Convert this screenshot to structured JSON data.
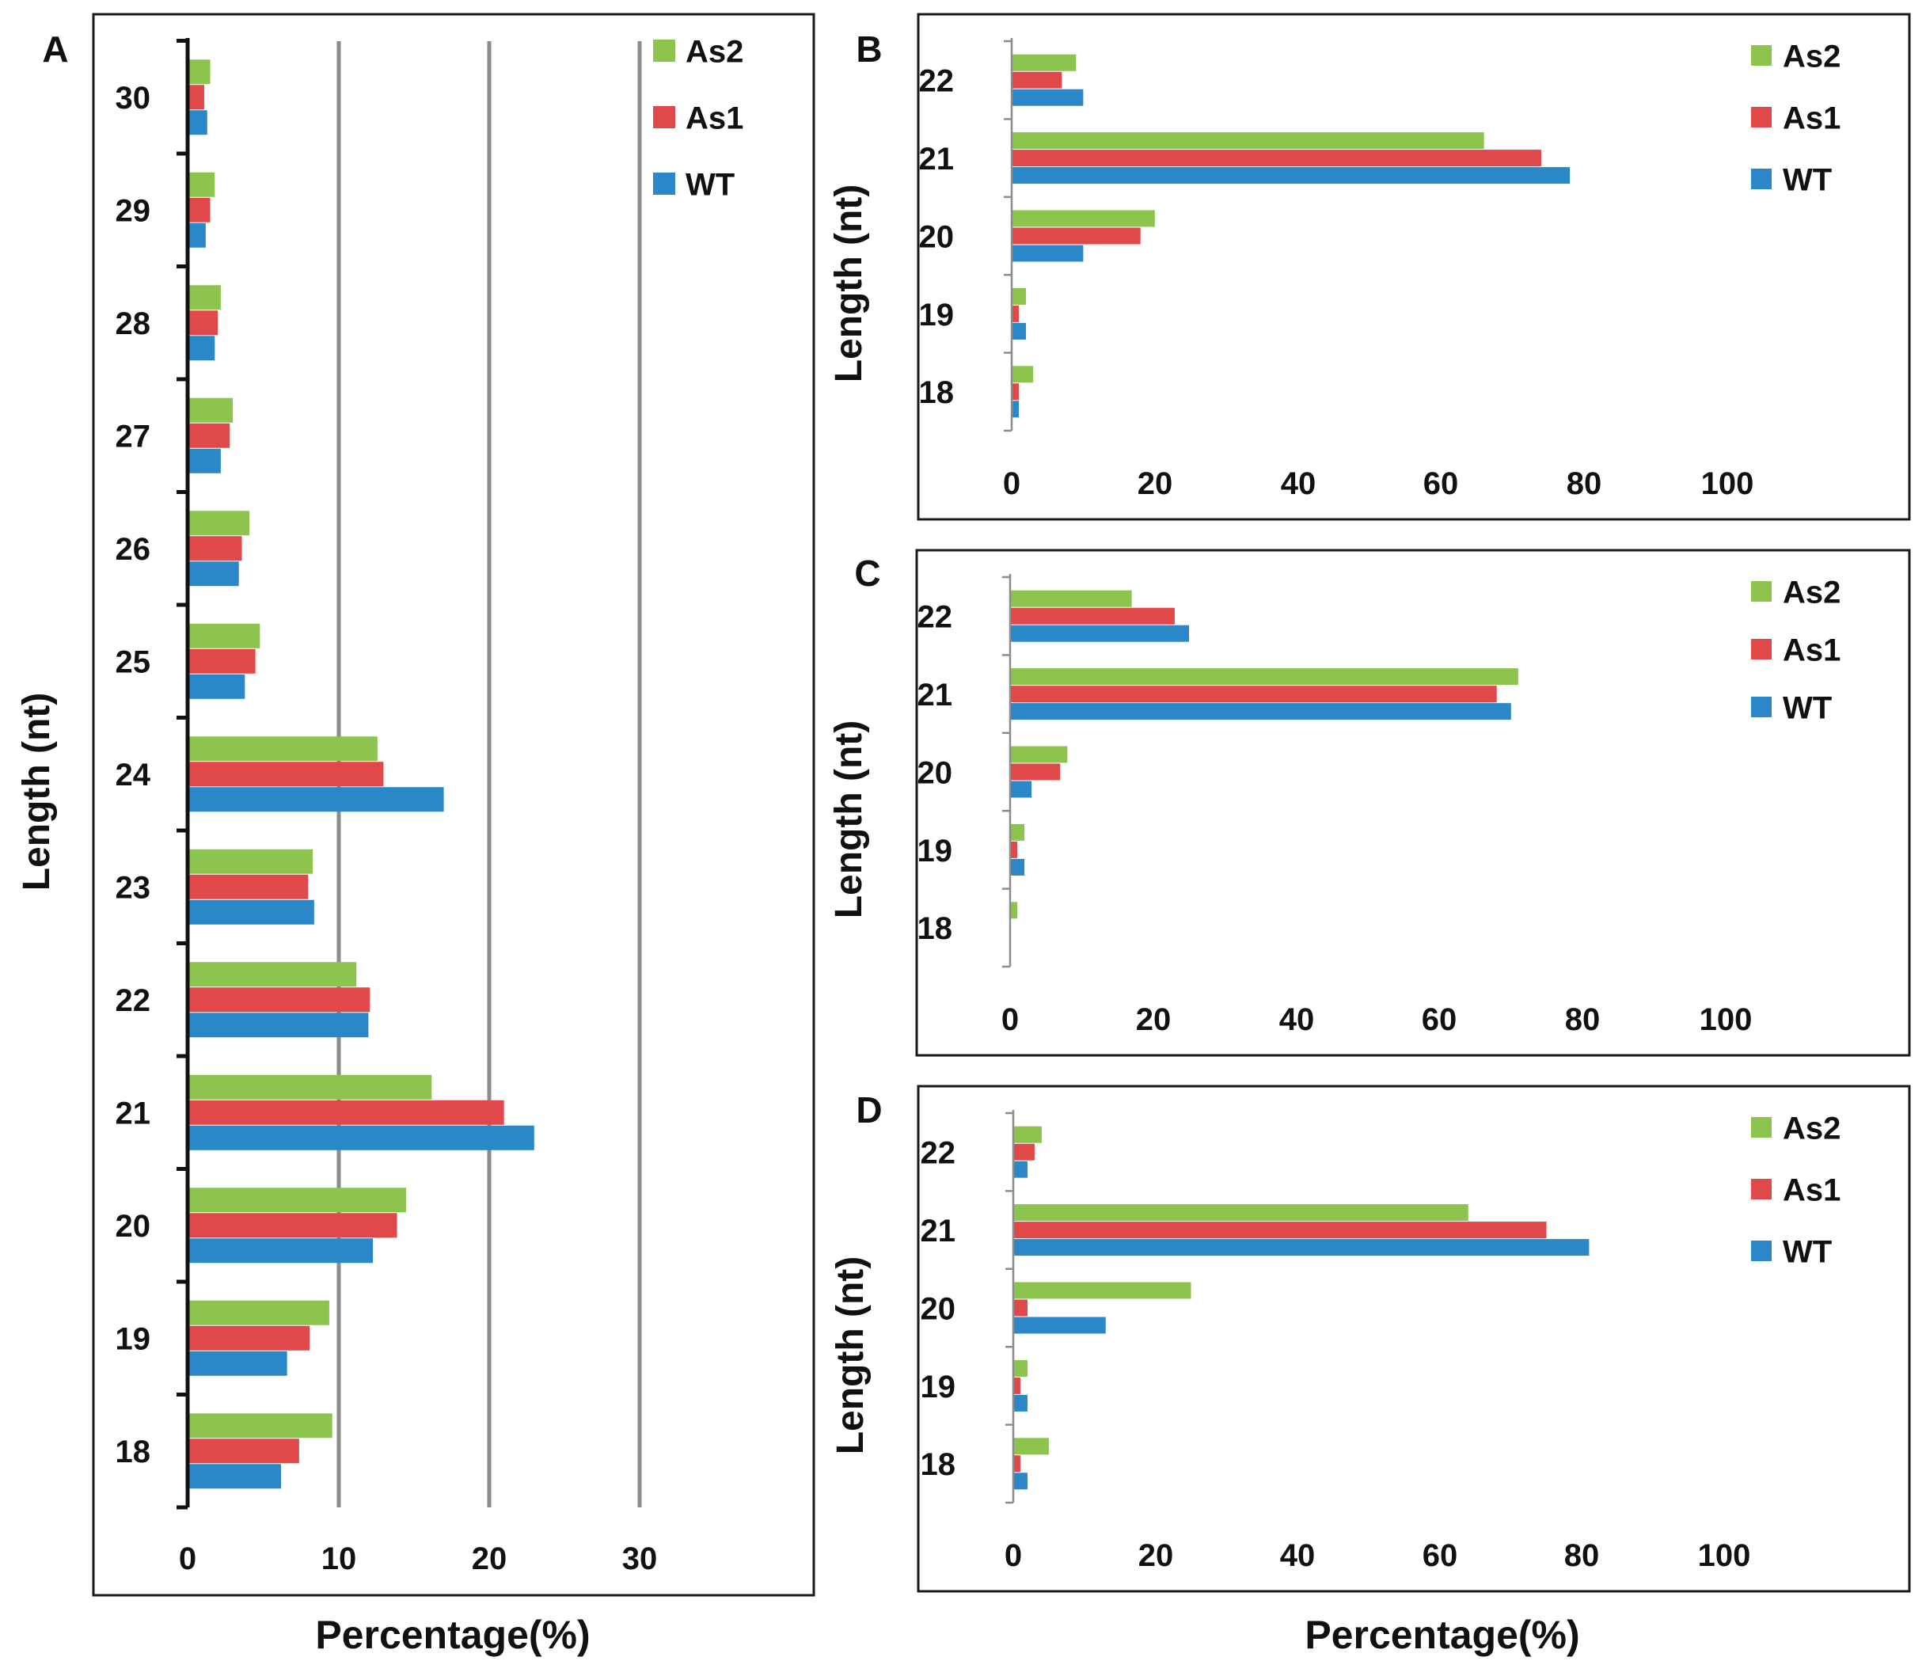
{
  "colors": {
    "As2": "#8dc44e",
    "As1": "#e0484a",
    "WT": "#2a87c8"
  },
  "legend": [
    "As2",
    "As1",
    "WT"
  ],
  "chart_data": [
    {
      "panel": "A",
      "type": "bar",
      "orientation": "horizontal",
      "categories": [
        "18",
        "19",
        "20",
        "21",
        "22",
        "23",
        "24",
        "25",
        "26",
        "27",
        "28",
        "29",
        "30"
      ],
      "series": [
        {
          "name": "As2",
          "values": [
            9.6,
            9.4,
            14.5,
            16.2,
            11.2,
            8.3,
            12.6,
            4.8,
            4.1,
            3.0,
            2.2,
            1.8,
            1.5
          ]
        },
        {
          "name": "As1",
          "values": [
            7.4,
            8.1,
            13.9,
            21.0,
            12.1,
            8.0,
            13.0,
            4.5,
            3.6,
            2.8,
            2.0,
            1.5,
            1.1
          ]
        },
        {
          "name": "WT",
          "values": [
            6.2,
            6.6,
            12.3,
            23.0,
            12.0,
            8.4,
            17.0,
            3.8,
            3.4,
            2.2,
            1.8,
            1.2,
            1.3
          ]
        }
      ],
      "xlim": [
        0,
        30
      ],
      "xticks": [
        "0",
        "10",
        "20",
        "30"
      ],
      "xlabel": "Percentage(%)",
      "ylabel": "Length (nt)",
      "legend_position": "top-right"
    },
    {
      "panel": "B",
      "type": "bar",
      "orientation": "horizontal",
      "categories": [
        "18",
        "19",
        "20",
        "21",
        "22"
      ],
      "series": [
        {
          "name": "As2",
          "values": [
            3,
            2,
            20,
            66,
            9
          ]
        },
        {
          "name": "As1",
          "values": [
            1,
            1,
            18,
            74,
            7
          ]
        },
        {
          "name": "WT",
          "values": [
            1,
            2,
            10,
            78,
            10
          ]
        }
      ],
      "xlim": [
        0,
        100
      ],
      "xticks": [
        "0",
        "20",
        "40",
        "60",
        "80",
        "100"
      ],
      "ylabel": "Length (nt)",
      "legend_position": "top-right"
    },
    {
      "panel": "C",
      "type": "bar",
      "orientation": "horizontal",
      "categories": [
        "18",
        "19",
        "20",
        "21",
        "22"
      ],
      "series": [
        {
          "name": "As2",
          "values": [
            1,
            2,
            8,
            71,
            17
          ]
        },
        {
          "name": "As1",
          "values": [
            0,
            1,
            7,
            68,
            23
          ]
        },
        {
          "name": "WT",
          "values": [
            0,
            2,
            3,
            70,
            25
          ]
        }
      ],
      "xlim": [
        0,
        100
      ],
      "xticks": [
        "0",
        "20",
        "40",
        "60",
        "80",
        "100"
      ],
      "ylabel": "Length (nt)",
      "legend_position": "top-right"
    },
    {
      "panel": "D",
      "type": "bar",
      "orientation": "horizontal",
      "categories": [
        "18",
        "19",
        "20",
        "21",
        "22"
      ],
      "series": [
        {
          "name": "As2",
          "values": [
            5,
            2,
            25,
            64,
            4
          ]
        },
        {
          "name": "As1",
          "values": [
            1,
            1,
            2,
            75,
            3
          ]
        },
        {
          "name": "WT",
          "values": [
            2,
            2,
            13,
            81,
            2
          ]
        }
      ],
      "xlim": [
        0,
        100
      ],
      "xticks": [
        "0",
        "20",
        "40",
        "60",
        "80",
        "100"
      ],
      "xlabel": "Percentage(%)",
      "ylabel": "Length (nt)",
      "legend_position": "top-right"
    }
  ]
}
